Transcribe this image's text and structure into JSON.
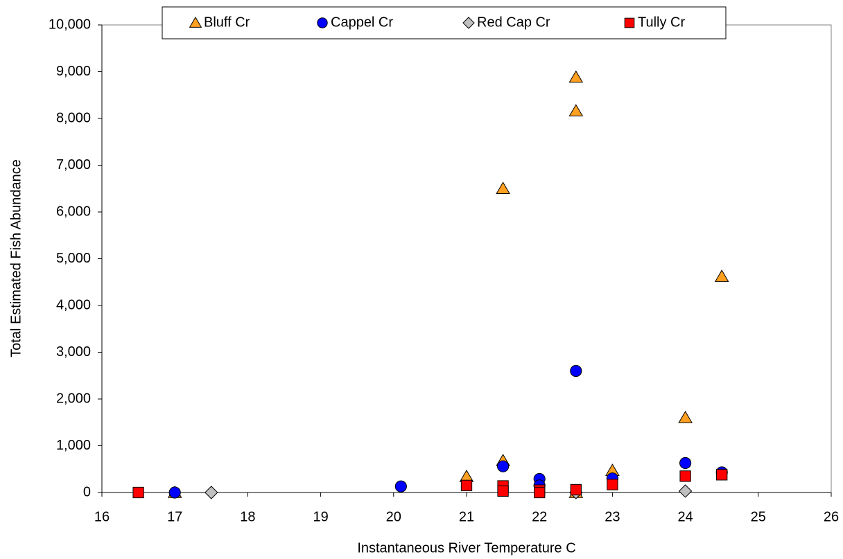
{
  "chart_data": {
    "type": "scatter",
    "x_label": "Instantaneous River Temperature  C",
    "y_label": "Total Estimated Fish Abundance",
    "xlim": [
      16,
      26
    ],
    "xticks": [
      16,
      17,
      18,
      19,
      20,
      21,
      22,
      23,
      24,
      25,
      26
    ],
    "ylim": [
      0,
      10000
    ],
    "yticks": [
      0,
      {
        "value": 1000,
        "label": "1,000"
      },
      {
        "value": 2000,
        "label": "2,000"
      },
      {
        "value": 3000,
        "label": "3,000"
      },
      {
        "value": 4000,
        "label": "4,000"
      },
      {
        "value": 5000,
        "label": "5,000"
      },
      {
        "value": 6000,
        "label": "6,000"
      },
      {
        "value": 7000,
        "label": "7,000"
      },
      {
        "value": 8000,
        "label": "8,000"
      },
      {
        "value": 9000,
        "label": "9,000"
      },
      {
        "value": 10000,
        "label": "10,000"
      }
    ],
    "legend": "top",
    "series": [
      {
        "name": "Bluff Cr",
        "color": "#ffa020",
        "marker": "triangle",
        "x": [
          17,
          21,
          21.5,
          21.5,
          22.5,
          22.5,
          22.5,
          23,
          24,
          24.5
        ],
        "y": [
          0,
          340,
          6500,
          680,
          8880,
          8160,
          0,
          470,
          1600,
          4620
        ]
      },
      {
        "name": "Cappel Cr",
        "color": "#0000ff",
        "marker": "circle",
        "x": [
          17,
          20.1,
          21.5,
          22,
          22,
          22.5,
          23,
          24,
          24.5
        ],
        "y": [
          0,
          130,
          560,
          290,
          150,
          2600,
          300,
          630,
          430
        ]
      },
      {
        "name": "Red Cap Cr",
        "color": "#c0c0c0",
        "marker": "diamond",
        "x": [
          17.5,
          22.5,
          24
        ],
        "y": [
          0,
          0,
          30
        ]
      },
      {
        "name": "Tully Cr",
        "color": "#ff0000",
        "marker": "square",
        "x": [
          16.5,
          21,
          21.5,
          21.5,
          22,
          22,
          22.5,
          23,
          24,
          24.5
        ],
        "y": [
          0,
          150,
          140,
          30,
          50,
          0,
          60,
          170,
          350,
          380
        ]
      }
    ]
  }
}
